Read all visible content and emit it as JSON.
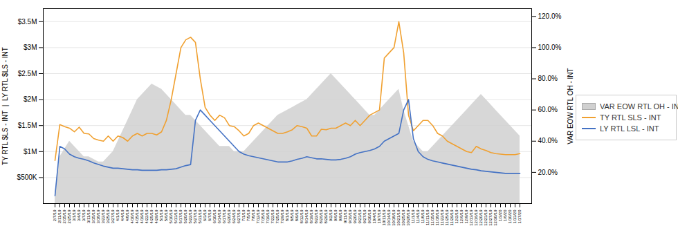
{
  "chart_data": {
    "type": "line",
    "ylabel": "TY RTL $LS - INT  |  LY RTL $LS - INT",
    "y2label": "VAR EOW RTL OH - INT",
    "categories": [
      "2/7/19",
      "2/11/19",
      "2/15/19",
      "2/25/19",
      "3/1/19",
      "3/4/19",
      "3/7/19",
      "3/11/19",
      "3/15/19",
      "3/18/19",
      "3/22/19",
      "3/25/19",
      "3/27/19",
      "4/1/19",
      "4/4/19",
      "4/8/19",
      "4/10/19",
      "4/15/19",
      "4/19/19",
      "4/22/19",
      "4/25/19",
      "4/29/19",
      "5/1/19",
      "5/6/19",
      "5/10/19",
      "5/13/19",
      "5/17/19",
      "5/20/19",
      "5/22/19",
      "5/27/19",
      "5/31/19",
      "6/3/19",
      "6/7/19",
      "6/10/19",
      "6/14/19",
      "6/17/19",
      "6/20/19",
      "6/24/19",
      "6/27/19",
      "7/1/19",
      "7/5/19",
      "7/8/19",
      "7/12/19",
      "7/15/19",
      "7/19/19",
      "7/22/19",
      "7/25/19",
      "7/29/19",
      "8/1/19",
      "8/5/19",
      "8/9/19",
      "8/12/19",
      "8/14/19",
      "8/19/19",
      "8/22/19",
      "8/26/19",
      "8/29/19",
      "9/2/19",
      "9/6/19",
      "9/9/19",
      "9/11/19",
      "9/16/19",
      "9/20/19",
      "9/23/19",
      "9/27/19",
      "9/30/19",
      "10/4/19",
      "10/7/19",
      "10/11/19",
      "10/14/19",
      "10/18/19",
      "10/21/19",
      "10/25/19",
      "10/28/19",
      "11/1/19",
      "11/4/19",
      "11/8/19",
      "11/11/19",
      "11/15/19",
      "11/18/19",
      "11/22/19",
      "11/25/19",
      "11/29/19",
      "12/2/19",
      "12/6/19",
      "12/9/19",
      "12/13/19",
      "12/16/19",
      "12/20/19",
      "12/23/19",
      "12/27/19",
      "12/30/19",
      "1/3/20",
      "1/6/20",
      "1/10/20",
      "1/13/20",
      "1/17/20"
    ],
    "series": [
      {
        "name": "VAR EOW RTL OH - INT",
        "type": "area",
        "color": "#d0d0d0",
        "values": [
          200000,
          900000,
          1050000,
          1200000,
          1100000,
          1000000,
          900000,
          900000,
          850000,
          800000,
          800000,
          900000,
          1000000,
          1200000,
          1400000,
          1600000,
          1800000,
          2000000,
          2100000,
          2200000,
          2300000,
          2250000,
          2200000,
          2100000,
          2000000,
          1900000,
          1800000,
          1700000,
          1700000,
          1600000,
          1500000,
          1400000,
          1300000,
          1200000,
          1100000,
          1100000,
          1100000,
          1000000,
          1000000,
          1000000,
          1100000,
          1200000,
          1300000,
          1400000,
          1500000,
          1600000,
          1700000,
          1750000,
          1800000,
          1850000,
          1900000,
          1950000,
          2000000,
          2100000,
          2200000,
          2300000,
          2400000,
          2500000,
          2400000,
          2300000,
          2200000,
          2100000,
          2000000,
          1900000,
          1800000,
          1700000,
          1700000,
          1800000,
          1900000,
          2000000,
          2100000,
          2200000,
          1800000,
          1500000,
          1200000,
          1100000,
          1000000,
          1000000,
          1100000,
          1200000,
          1300000,
          1400000,
          1500000,
          1600000,
          1700000,
          1800000,
          1900000,
          2000000,
          2100000,
          2000000,
          1900000,
          1800000,
          1700000,
          1600000,
          1500000,
          1400000,
          1300000
        ]
      },
      {
        "name": "TY RTL SLS - INT",
        "type": "line",
        "color": "#f0a030",
        "values": [
          830000,
          1520000,
          1480000,
          1450000,
          1380000,
          1470000,
          1350000,
          1340000,
          1250000,
          1220000,
          1200000,
          1300000,
          1200000,
          1300000,
          1270000,
          1200000,
          1300000,
          1350000,
          1300000,
          1350000,
          1350000,
          1320000,
          1380000,
          1600000,
          2000000,
          2500000,
          3000000,
          3150000,
          3200000,
          3100000,
          2400000,
          1850000,
          1700000,
          1600000,
          1700000,
          1650000,
          1500000,
          1480000,
          1400000,
          1300000,
          1350000,
          1500000,
          1550000,
          1500000,
          1450000,
          1400000,
          1350000,
          1350000,
          1380000,
          1420000,
          1500000,
          1480000,
          1450000,
          1300000,
          1300000,
          1430000,
          1420000,
          1450000,
          1450000,
          1500000,
          1550000,
          1500000,
          1600000,
          1500000,
          1600000,
          1700000,
          1750000,
          1800000,
          2800000,
          2900000,
          3000000,
          3500000,
          2900000,
          1700000,
          1400000,
          1500000,
          1600000,
          1600000,
          1500000,
          1350000,
          1300000,
          1200000,
          1150000,
          1100000,
          1050000,
          1000000,
          980000,
          1100000,
          1050000,
          1020000,
          980000,
          960000,
          950000,
          940000,
          940000,
          940000,
          960000
        ]
      },
      {
        "name": "LY RTL LSL - INT",
        "type": "line",
        "color": "#4472c4",
        "values": [
          150000,
          1100000,
          1050000,
          950000,
          900000,
          870000,
          850000,
          820000,
          780000,
          750000,
          720000,
          700000,
          680000,
          680000,
          670000,
          660000,
          650000,
          650000,
          640000,
          640000,
          640000,
          640000,
          650000,
          650000,
          660000,
          670000,
          700000,
          730000,
          750000,
          1600000,
          1800000,
          1700000,
          1600000,
          1500000,
          1400000,
          1300000,
          1200000,
          1100000,
          1000000,
          950000,
          920000,
          900000,
          880000,
          860000,
          840000,
          820000,
          800000,
          800000,
          800000,
          820000,
          850000,
          870000,
          900000,
          880000,
          860000,
          860000,
          850000,
          840000,
          840000,
          850000,
          870000,
          900000,
          950000,
          980000,
          1000000,
          1020000,
          1050000,
          1100000,
          1200000,
          1250000,
          1300000,
          1350000,
          1800000,
          2000000,
          1250000,
          1000000,
          900000,
          850000,
          820000,
          800000,
          780000,
          760000,
          740000,
          720000,
          700000,
          680000,
          660000,
          650000,
          630000,
          620000,
          610000,
          600000,
          590000,
          580000,
          580000,
          580000,
          580000
        ]
      }
    ],
    "ylim": [
      0,
      3750000
    ],
    "yticks": [
      {
        "value": 500000,
        "label": "$500K"
      },
      {
        "value": 1000000,
        "label": "$1M"
      },
      {
        "value": 1500000,
        "label": "$1.5M"
      },
      {
        "value": 2000000,
        "label": "$2M"
      },
      {
        "value": 2500000,
        "label": "$2.5M"
      },
      {
        "value": 3000000,
        "label": "$3M"
      },
      {
        "value": 3500000,
        "label": "$3.5M"
      }
    ],
    "y2lim": [
      0,
      1.25
    ],
    "y2ticks": [
      {
        "value": 0.2,
        "label": "20.0%"
      },
      {
        "value": 0.4,
        "label": "40.0%"
      },
      {
        "value": 0.6,
        "label": "60.0%"
      },
      {
        "value": 0.8,
        "label": "80.0%"
      },
      {
        "value": 1.0,
        "label": "100.0%"
      },
      {
        "value": 1.2,
        "label": "120.0%"
      }
    ],
    "grid": true,
    "legend": "right"
  }
}
